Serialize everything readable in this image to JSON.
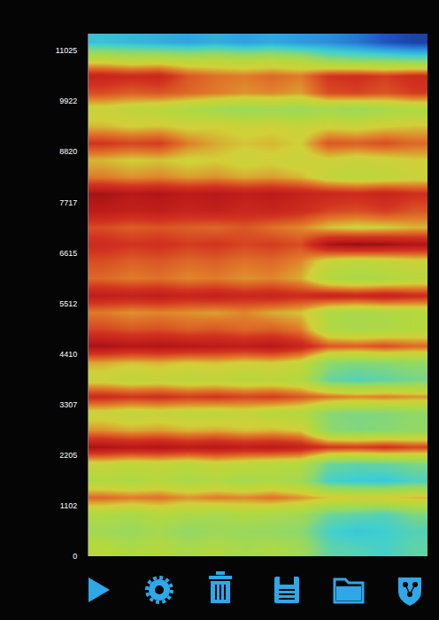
{
  "chart_data": {
    "type": "heatmap",
    "y_edges": [
      0,
      368,
      735,
      1103,
      1470,
      1838,
      2205,
      2573,
      2940,
      3308,
      3675,
      4043,
      4410,
      4778,
      5145,
      5513,
      5880,
      6248,
      6615,
      6983,
      7350,
      7718,
      8085,
      8453,
      8820,
      9188,
      9555,
      9923,
      10290,
      10658,
      11025,
      11393
    ],
    "ylim": [
      0,
      11393
    ],
    "yticks": [
      0,
      1102,
      2205,
      3307,
      4410,
      5512,
      6615,
      7717,
      8820,
      9922,
      11025
    ],
    "zlim": [
      0,
      100
    ],
    "tick_labels": "y",
    "cells": [
      [
        58,
        55,
        57,
        54,
        56,
        53,
        55,
        52,
        40,
        38,
        36,
        40
      ],
      [
        52,
        50,
        53,
        48,
        51,
        50,
        49,
        47,
        36,
        33,
        35,
        38
      ],
      [
        56,
        54,
        57,
        55,
        53,
        56,
        54,
        52,
        42,
        40,
        38,
        44
      ],
      [
        74,
        72,
        73,
        70,
        72,
        71,
        73,
        70,
        66,
        64,
        65,
        67
      ],
      [
        56,
        55,
        57,
        54,
        56,
        53,
        55,
        52,
        36,
        34,
        33,
        37
      ],
      [
        62,
        60,
        61,
        59,
        62,
        60,
        58,
        57,
        42,
        40,
        41,
        44
      ],
      [
        90,
        88,
        89,
        87,
        88,
        86,
        87,
        85,
        80,
        79,
        81,
        78
      ],
      [
        70,
        68,
        69,
        67,
        68,
        66,
        67,
        65,
        47,
        45,
        46,
        48
      ],
      [
        62,
        60,
        61,
        60,
        59,
        61,
        58,
        57,
        46,
        44,
        45,
        47
      ],
      [
        82,
        80,
        81,
        79,
        80,
        78,
        79,
        76,
        73,
        71,
        72,
        70
      ],
      [
        62,
        60,
        61,
        59,
        60,
        58,
        59,
        57,
        41,
        38,
        40,
        43
      ],
      [
        68,
        66,
        67,
        65,
        66,
        64,
        65,
        62,
        47,
        45,
        46,
        48
      ],
      [
        90,
        88,
        89,
        88,
        87,
        86,
        88,
        84,
        76,
        75,
        77,
        74
      ],
      [
        78,
        76,
        77,
        75,
        76,
        74,
        75,
        72,
        56,
        54,
        55,
        57
      ],
      [
        72,
        70,
        71,
        70,
        69,
        71,
        68,
        66,
        56,
        54,
        55,
        57
      ],
      [
        86,
        85,
        86,
        84,
        85,
        83,
        84,
        82,
        84,
        83,
        85,
        82
      ],
      [
        74,
        72,
        73,
        71,
        72,
        70,
        71,
        68,
        56,
        54,
        55,
        58
      ],
      [
        77,
        75,
        76,
        74,
        75,
        73,
        74,
        71,
        62,
        60,
        61,
        63
      ],
      [
        82,
        80,
        81,
        79,
        80,
        78,
        79,
        77,
        90,
        92,
        91,
        89
      ],
      [
        77,
        75,
        76,
        75,
        74,
        76,
        73,
        71,
        66,
        64,
        65,
        67
      ],
      [
        87,
        85,
        86,
        84,
        85,
        83,
        84,
        82,
        78,
        77,
        79,
        76
      ],
      [
        90,
        88,
        89,
        87,
        88,
        86,
        87,
        85,
        83,
        82,
        84,
        81
      ],
      [
        72,
        70,
        71,
        69,
        70,
        68,
        69,
        67,
        61,
        59,
        60,
        62
      ],
      [
        67,
        65,
        66,
        64,
        65,
        63,
        64,
        62,
        64,
        62,
        63,
        65
      ],
      [
        80,
        78,
        79,
        72,
        68,
        66,
        67,
        65,
        76,
        75,
        77,
        74
      ],
      [
        67,
        65,
        66,
        64,
        65,
        63,
        64,
        62,
        64,
        63,
        65,
        66
      ],
      [
        62,
        60,
        58,
        55,
        52,
        50,
        51,
        50,
        52,
        50,
        53,
        55
      ],
      [
        77,
        75,
        76,
        74,
        72,
        70,
        71,
        69,
        77,
        78,
        76,
        79
      ],
      [
        84,
        82,
        83,
        76,
        73,
        72,
        74,
        72,
        80,
        81,
        79,
        82
      ],
      [
        60,
        58,
        59,
        57,
        58,
        56,
        57,
        55,
        47,
        45,
        44,
        42
      ],
      [
        32,
        30,
        28,
        26,
        28,
        25,
        27,
        24,
        22,
        18,
        12,
        8
      ]
    ]
  }
}
